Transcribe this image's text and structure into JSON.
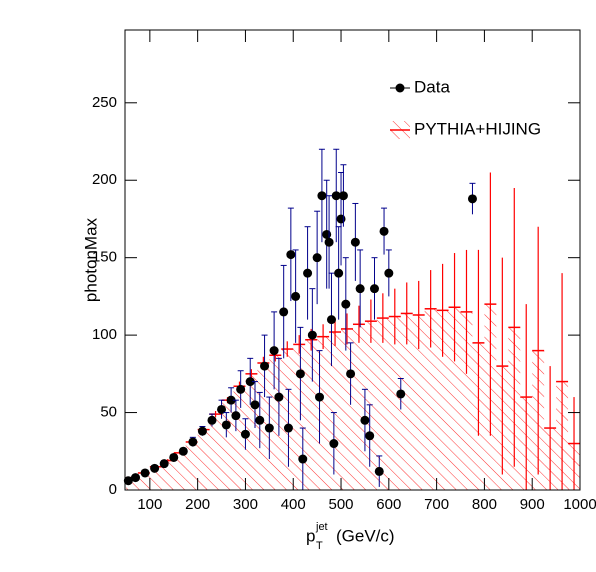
{
  "chart_data": {
    "type": "histogram",
    "ylabel": "photonMax",
    "xlabel": {
      "base": "p",
      "sub": "T",
      "sup": "jet",
      "unit": "(GeV/c)"
    },
    "xlim": [
      48,
      1000
    ],
    "ylim": [
      0,
      297
    ],
    "xticks": [
      100,
      200,
      300,
      400,
      500,
      600,
      700,
      800,
      900,
      1000
    ],
    "yticks": [
      0,
      50,
      100,
      150,
      200,
      250
    ],
    "legend": "top-right",
    "histogram": {
      "name": "PYTHIA+HIJING",
      "color": "#ff0000",
      "bins": [
        50,
        75,
        100,
        125,
        150,
        175,
        200,
        225,
        250,
        275,
        300,
        325,
        350,
        375,
        400,
        425,
        450,
        475,
        500,
        525,
        550,
        575,
        600,
        625,
        650,
        675,
        700,
        725,
        750,
        775,
        800,
        825,
        850,
        875,
        900,
        925,
        950,
        975,
        1000
      ],
      "values": [
        8,
        11,
        15,
        19,
        24,
        31,
        39,
        49,
        58,
        67,
        75,
        82,
        87,
        91,
        94,
        97,
        99,
        102,
        104,
        107,
        109,
        111,
        112,
        114,
        113,
        117,
        116,
        118,
        115,
        95,
        120,
        80,
        105,
        60,
        90,
        40,
        70,
        30
      ],
      "errors": [
        1,
        1,
        1,
        1,
        1,
        1,
        2,
        2,
        2,
        3,
        3,
        4,
        4,
        5,
        6,
        7,
        8,
        9,
        10,
        12,
        14,
        16,
        18,
        20,
        22,
        25,
        30,
        35,
        40,
        60,
        85,
        70,
        90,
        60,
        80,
        40,
        70,
        30
      ]
    },
    "data": {
      "name": "Data",
      "color": "#000000",
      "error_color": "#00008b",
      "x": [
        55,
        70,
        90,
        110,
        130,
        150,
        170,
        190,
        210,
        230,
        250,
        260,
        270,
        280,
        290,
        300,
        310,
        320,
        330,
        340,
        350,
        360,
        370,
        380,
        390,
        395,
        405,
        415,
        420,
        430,
        440,
        450,
        455,
        460,
        470,
        475,
        480,
        485,
        490,
        495,
        500,
        505,
        510,
        520,
        530,
        540,
        550,
        560,
        570,
        580,
        590,
        600,
        625,
        775
      ],
      "values": [
        6,
        8,
        11,
        14,
        17,
        21,
        25,
        31,
        38,
        45,
        52,
        42,
        58,
        48,
        65,
        36,
        70,
        55,
        45,
        80,
        40,
        90,
        60,
        115,
        40,
        152,
        125,
        75,
        20,
        140,
        100,
        150,
        60,
        190,
        165,
        160,
        110,
        30,
        190,
        140,
        175,
        190,
        120,
        75,
        160,
        130,
        45,
        35,
        130,
        12,
        167,
        140,
        62,
        188
      ],
      "errors": [
        1,
        1,
        1,
        1,
        2,
        2,
        2,
        3,
        3,
        4,
        6,
        8,
        8,
        10,
        12,
        10,
        15,
        15,
        18,
        20,
        20,
        25,
        25,
        30,
        25,
        30,
        30,
        30,
        20,
        30,
        30,
        30,
        30,
        30,
        35,
        30,
        30,
        20,
        30,
        30,
        30,
        20,
        30,
        20,
        25,
        25,
        20,
        20,
        20,
        10,
        15,
        15,
        10,
        10
      ]
    }
  }
}
